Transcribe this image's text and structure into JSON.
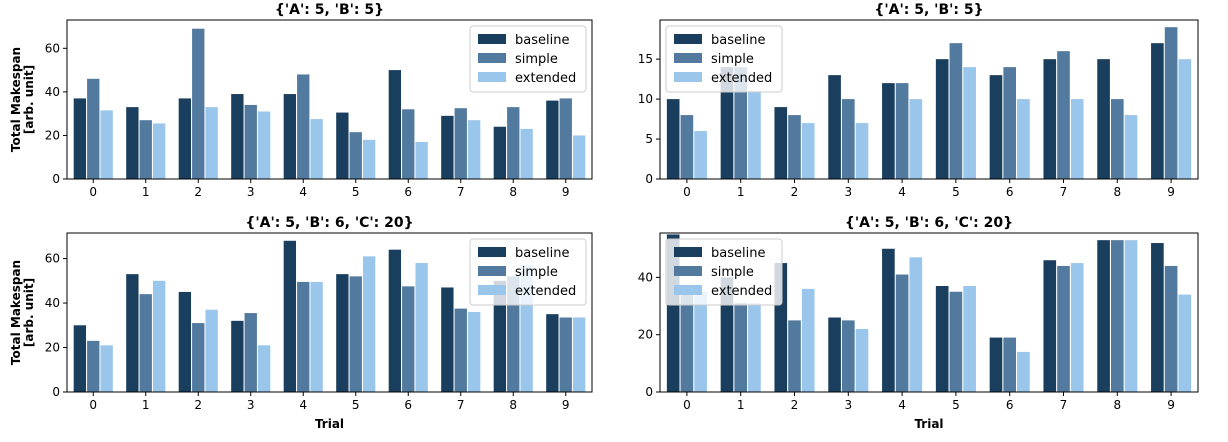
{
  "colors": {
    "baseline": "#1a3f5e",
    "simple": "#527a9e",
    "extended": "#99c6ea"
  },
  "chart_data": [
    {
      "type": "bar",
      "title": "{'A': 5, 'B': 5}",
      "xlabel": "",
      "ylabel": "Total Makespan\n[arb. unit]",
      "categories": [
        "0",
        "1",
        "2",
        "3",
        "4",
        "5",
        "6",
        "7",
        "8",
        "9"
      ],
      "ylim": [
        0,
        73
      ],
      "yticks": [
        0,
        20,
        40,
        60
      ],
      "legend": "top-right",
      "series": [
        {
          "name": "baseline",
          "values": [
            37,
            33,
            37,
            39,
            39,
            30.5,
            50,
            29,
            24,
            36
          ]
        },
        {
          "name": "simple",
          "values": [
            46,
            27,
            69,
            34,
            48,
            21.5,
            32,
            32.5,
            33,
            37
          ]
        },
        {
          "name": "extended",
          "values": [
            31.5,
            25.5,
            33,
            31,
            27.5,
            18,
            17,
            27,
            23,
            20
          ]
        }
      ]
    },
    {
      "type": "bar",
      "title": "{'A': 5, 'B': 5}",
      "xlabel": "",
      "ylabel": "",
      "categories": [
        "0",
        "1",
        "2",
        "3",
        "4",
        "5",
        "6",
        "7",
        "8",
        "9"
      ],
      "ylim": [
        0,
        19.9
      ],
      "yticks": [
        0,
        5,
        10,
        15
      ],
      "legend": "top-left",
      "series": [
        {
          "name": "baseline",
          "values": [
            10,
            14,
            9,
            13,
            12,
            15,
            13,
            15,
            15,
            17
          ]
        },
        {
          "name": "simple",
          "values": [
            8,
            14,
            8,
            10,
            12,
            17,
            14,
            16,
            10,
            19
          ]
        },
        {
          "name": "extended",
          "values": [
            6,
            11,
            7,
            7,
            10,
            14,
            10,
            10,
            8,
            15
          ]
        }
      ]
    },
    {
      "type": "bar",
      "title": "{'A': 5, 'B': 6, 'C': 20}",
      "xlabel": "Trial",
      "ylabel": "Total Makespan\n[arb. unit]",
      "categories": [
        "0",
        "1",
        "2",
        "3",
        "4",
        "5",
        "6",
        "7",
        "8",
        "9"
      ],
      "ylim": [
        0,
        71.5
      ],
      "yticks": [
        0,
        20,
        40,
        60
      ],
      "legend": "top-right",
      "series": [
        {
          "name": "baseline",
          "values": [
            30,
            53,
            45,
            32,
            68,
            53,
            64,
            47,
            50,
            35
          ]
        },
        {
          "name": "simple",
          "values": [
            23,
            44,
            31,
            35.5,
            49.5,
            52,
            47.5,
            37.5,
            52,
            33.5
          ]
        },
        {
          "name": "extended",
          "values": [
            21,
            50,
            37,
            21,
            49.5,
            61,
            58,
            36,
            57,
            33.5
          ]
        }
      ]
    },
    {
      "type": "bar",
      "title": "{'A': 5, 'B': 6, 'C': 20}",
      "xlabel": "Trial",
      "ylabel": "",
      "categories": [
        "0",
        "1",
        "2",
        "3",
        "4",
        "5",
        "6",
        "7",
        "8",
        "9"
      ],
      "ylim": [
        0,
        55.5
      ],
      "yticks": [
        0,
        20,
        40
      ],
      "legend": "top-left",
      "series": [
        {
          "name": "baseline",
          "values": [
            55,
            40,
            45,
            26,
            50,
            37,
            19,
            46,
            53,
            52
          ]
        },
        {
          "name": "simple",
          "values": [
            34,
            31,
            25,
            25,
            41,
            35,
            19,
            44,
            53,
            44
          ]
        },
        {
          "name": "extended",
          "values": [
            35,
            31,
            36,
            22,
            47,
            37,
            14,
            45,
            53,
            34
          ]
        }
      ]
    }
  ]
}
